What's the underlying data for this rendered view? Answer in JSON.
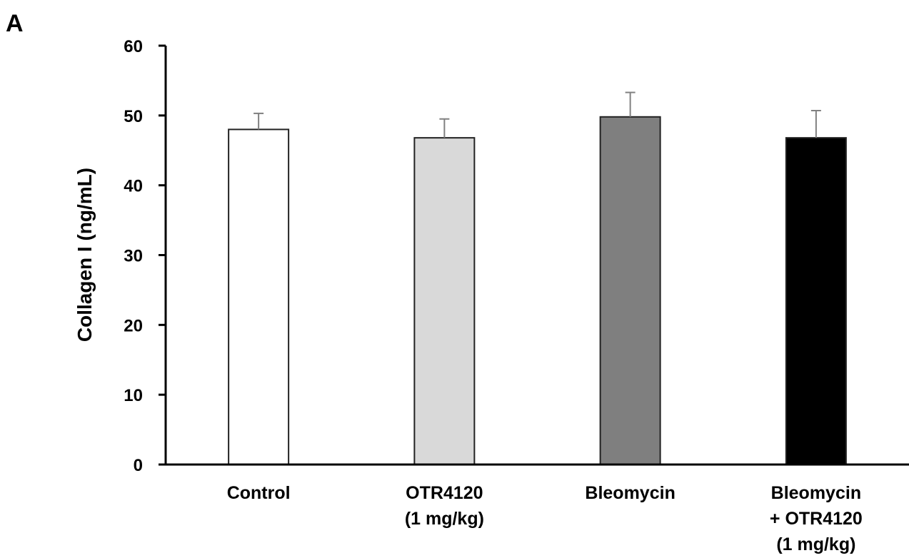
{
  "chart_data": {
    "type": "bar",
    "panel_label": "A",
    "ylabel": "Collagen I (ng/mL)",
    "xlabel": "",
    "ylim": [
      0,
      60
    ],
    "yticks": [
      0,
      10,
      20,
      30,
      40,
      50,
      60
    ],
    "grid": false,
    "categories": [
      [
        "Control"
      ],
      [
        "OTR4120",
        "(1 mg/kg)"
      ],
      [
        "Bleomycin"
      ],
      [
        "Bleomycin",
        "+ OTR4120",
        "(1 mg/kg)"
      ]
    ],
    "values": [
      48.0,
      46.8,
      49.8,
      46.8
    ],
    "errors": [
      2.3,
      2.7,
      3.5,
      3.9
    ],
    "bar_colors": [
      "#ffffff",
      "#d9d9d9",
      "#7f7f7f",
      "#000000"
    ],
    "error_bar_color": "#808080"
  }
}
